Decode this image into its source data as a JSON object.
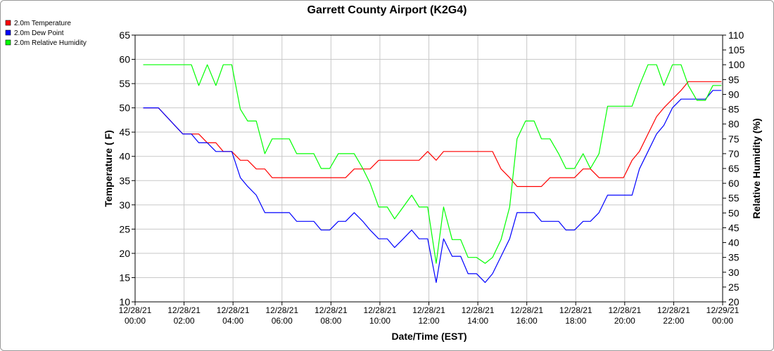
{
  "chart_data": {
    "type": "line",
    "title": "Garrett County Airport (K2G4)",
    "xlabel": "Date/Time (EST)",
    "ylabel_left": "Temperature ( F)",
    "ylabel_right": "Relative Humidity (%)",
    "ylim_left": [
      10,
      65
    ],
    "ylim_right": [
      20,
      110
    ],
    "yticks_left": [
      10,
      15,
      20,
      25,
      30,
      35,
      40,
      45,
      50,
      55,
      60,
      65
    ],
    "yticks_right": [
      20,
      25,
      30,
      35,
      40,
      45,
      50,
      55,
      60,
      65,
      70,
      75,
      80,
      85,
      90,
      95,
      100,
      105,
      110
    ],
    "x_unit": "hours since 12/28/21 00:00",
    "xlim": [
      0,
      24
    ],
    "xticks": [
      {
        "x": 0,
        "date": "12/28/21",
        "time": "00:00"
      },
      {
        "x": 2,
        "date": "12/28/21",
        "time": "02:00"
      },
      {
        "x": 4,
        "date": "12/28/21",
        "time": "04:00"
      },
      {
        "x": 6,
        "date": "12/28/21",
        "time": "06:00"
      },
      {
        "x": 8,
        "date": "12/28/21",
        "time": "08:00"
      },
      {
        "x": 10,
        "date": "12/28/21",
        "time": "10:00"
      },
      {
        "x": 12,
        "date": "12/28/21",
        "time": "12:00"
      },
      {
        "x": 14,
        "date": "12/28/21",
        "time": "14:00"
      },
      {
        "x": 16,
        "date": "12/28/21",
        "time": "16:00"
      },
      {
        "x": 18,
        "date": "12/28/21",
        "time": "18:00"
      },
      {
        "x": 20,
        "date": "12/28/21",
        "time": "20:00"
      },
      {
        "x": 22,
        "date": "12/28/21",
        "time": "22:00"
      },
      {
        "x": 24,
        "date": "12/29/21",
        "time": "00:00"
      }
    ],
    "grid": true,
    "legend_position": "top-left",
    "series": [
      {
        "name": "2.0m Temperature",
        "color": "#ff0000",
        "axis": "left",
        "x": [
          0.33,
          0.95,
          1.95,
          2.6,
          2.95,
          3.3,
          3.6,
          3.95,
          4.3,
          4.6,
          4.95,
          5.3,
          5.6,
          5.95,
          6.3,
          6.6,
          6.95,
          7.3,
          7.6,
          7.95,
          8.3,
          8.6,
          8.95,
          9.3,
          9.6,
          9.95,
          10.3,
          10.6,
          10.95,
          11.3,
          11.6,
          11.95,
          12.3,
          12.6,
          12.95,
          13.3,
          13.6,
          13.95,
          14.3,
          14.6,
          14.95,
          15.3,
          15.6,
          15.95,
          16.3,
          16.6,
          16.95,
          17.3,
          17.6,
          17.95,
          18.3,
          18.6,
          18.95,
          19.3,
          19.6,
          19.95,
          20.3,
          20.6,
          20.95,
          21.3,
          21.6,
          21.95,
          22.3,
          22.6,
          22.95,
          23.3,
          23.6,
          23.95
        ],
        "values": [
          50,
          50,
          44.6,
          44.6,
          42.8,
          42.8,
          41,
          41,
          39.2,
          39.2,
          37.4,
          37.4,
          35.6,
          35.6,
          35.6,
          35.6,
          35.6,
          35.6,
          35.6,
          35.6,
          35.6,
          35.6,
          37.4,
          37.4,
          37.4,
          39.2,
          39.2,
          39.2,
          39.2,
          39.2,
          39.2,
          41,
          39.2,
          41,
          41,
          41,
          41,
          41,
          41,
          41,
          37.4,
          35.6,
          33.8,
          33.8,
          33.8,
          33.8,
          35.6,
          35.6,
          35.6,
          35.6,
          37.4,
          37.4,
          35.6,
          35.6,
          35.6,
          35.6,
          39.2,
          41,
          44.6,
          48.2,
          50,
          51.8,
          53.6,
          55.4,
          55.4,
          55.4,
          55.4,
          55.4
        ]
      },
      {
        "name": "2.0m Dew Point",
        "color": "#0000ff",
        "axis": "left",
        "x": [
          0.33,
          0.95,
          1.95,
          2.3,
          2.6,
          2.95,
          3.3,
          3.6,
          3.95,
          4.3,
          4.6,
          4.95,
          5.3,
          5.6,
          5.95,
          6.3,
          6.6,
          6.95,
          7.3,
          7.6,
          7.95,
          8.3,
          8.6,
          8.95,
          9.3,
          9.6,
          9.95,
          10.3,
          10.6,
          10.95,
          11.3,
          11.6,
          11.95,
          12.3,
          12.6,
          12.95,
          13.3,
          13.6,
          13.95,
          14.3,
          14.6,
          14.95,
          15.3,
          15.6,
          15.95,
          16.3,
          16.6,
          16.95,
          17.3,
          17.6,
          17.95,
          18.3,
          18.6,
          18.95,
          19.3,
          19.6,
          19.95,
          20.3,
          20.6,
          20.95,
          21.3,
          21.6,
          21.95,
          22.3,
          22.6,
          22.95,
          23.3,
          23.6,
          23.95
        ],
        "values": [
          50,
          50,
          44.6,
          44.6,
          42.8,
          42.8,
          41,
          41,
          41,
          35.6,
          33.8,
          32,
          28.4,
          28.4,
          28.4,
          28.4,
          26.6,
          26.6,
          26.6,
          24.8,
          24.8,
          26.6,
          26.6,
          28.4,
          26.6,
          24.8,
          23,
          23,
          21.2,
          23,
          24.8,
          23,
          23,
          14,
          23,
          19.4,
          19.4,
          15.8,
          15.8,
          14,
          15.8,
          19.4,
          23,
          28.4,
          28.4,
          28.4,
          26.6,
          26.6,
          26.6,
          24.8,
          24.8,
          26.6,
          26.6,
          28.4,
          32,
          32,
          32,
          32,
          37.4,
          41,
          44.6,
          46.4,
          50,
          51.8,
          51.8,
          51.8,
          51.8,
          53.6,
          53.6
        ]
      },
      {
        "name": "2.0m Relative Humidity",
        "color": "#00ff00",
        "axis": "right",
        "x": [
          0.33,
          1.95,
          2.3,
          2.6,
          2.95,
          3.3,
          3.6,
          3.95,
          4.3,
          4.6,
          4.95,
          5.3,
          5.6,
          5.95,
          6.3,
          6.6,
          6.95,
          7.3,
          7.6,
          7.95,
          8.3,
          8.6,
          8.95,
          9.3,
          9.6,
          9.95,
          10.3,
          10.6,
          10.95,
          11.3,
          11.6,
          11.95,
          12.3,
          12.6,
          12.95,
          13.3,
          13.6,
          13.95,
          14.3,
          14.6,
          14.95,
          15.3,
          15.6,
          15.95,
          16.3,
          16.6,
          16.95,
          17.3,
          17.6,
          17.95,
          18.3,
          18.6,
          18.95,
          19.3,
          19.6,
          19.95,
          20.3,
          20.6,
          20.95,
          21.3,
          21.6,
          21.95,
          22.3,
          22.6,
          22.95,
          23.3,
          23.6,
          23.95
        ],
        "values": [
          100,
          100,
          100,
          93,
          100,
          93,
          100,
          100,
          85,
          81,
          81,
          70,
          75,
          75,
          75,
          70,
          70,
          70,
          65,
          65,
          70,
          70,
          70,
          65,
          60,
          52,
          52,
          48,
          52,
          56,
          52,
          52,
          33,
          52,
          41,
          41,
          35,
          35,
          33,
          35,
          41,
          52,
          75,
          81,
          81,
          75,
          75,
          70,
          65,
          65,
          70,
          65,
          70,
          86,
          86,
          86,
          86,
          93,
          100,
          100,
          93,
          100,
          100,
          93,
          88,
          88,
          93,
          93
        ]
      }
    ]
  }
}
